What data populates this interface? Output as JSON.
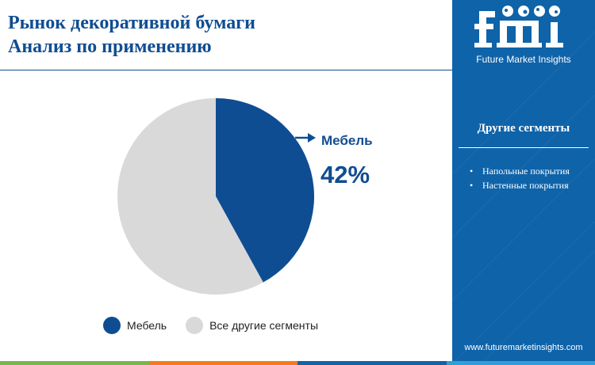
{
  "title": {
    "line1": "Рынок декоративной бумаги",
    "line2": "Анализ по применению"
  },
  "chart_data": {
    "type": "pie",
    "series": [
      {
        "name": "Мебель",
        "value": 42,
        "color": "#0f4d92"
      },
      {
        "name": "Все другие сегменты",
        "value": 58,
        "color": "#d9d9d9"
      }
    ],
    "highlight": {
      "label": "Мебель",
      "value_text": "42%"
    },
    "legend": [
      "Мебель",
      "Все другие сегменты"
    ]
  },
  "sidebar": {
    "logo_alt": "fmi",
    "logo_text": "Future Market Insights",
    "segments_title": "Другие сегменты",
    "segments": [
      "Напольные покрытия",
      "Настенные покрытия"
    ],
    "url": "www.futuremarketinsights.com",
    "bg_color": "#0f63a9"
  },
  "colors": {
    "primary": "#0f4d92",
    "other": "#d9d9d9",
    "footer": [
      "#7ab648",
      "#f47b20",
      "#0f63a9",
      "#2e9fd8"
    ]
  }
}
